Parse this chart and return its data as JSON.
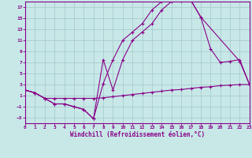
{
  "xlabel": "Windchill (Refroidissement éolien,°C)",
  "bg_color": "#c8e8e8",
  "line_color": "#880088",
  "grid_color": "#aacccc",
  "xlim": [
    0,
    23
  ],
  "ylim": [
    -4,
    18
  ],
  "xticks": [
    0,
    1,
    2,
    3,
    4,
    5,
    6,
    7,
    8,
    9,
    10,
    11,
    12,
    13,
    14,
    15,
    16,
    17,
    18,
    19,
    20,
    21,
    22,
    23
  ],
  "yticks": [
    -3,
    -1,
    1,
    3,
    5,
    7,
    9,
    11,
    13,
    15,
    17
  ],
  "line1_x": [
    0,
    1,
    2,
    3,
    4,
    5,
    6,
    7,
    8,
    9,
    10,
    11,
    12,
    13,
    14,
    15,
    16,
    17,
    18,
    19,
    20,
    21,
    22,
    23
  ],
  "line1_y": [
    2.0,
    1.5,
    0.5,
    0.5,
    0.5,
    0.5,
    0.5,
    0.5,
    0.6,
    0.8,
    1.0,
    1.2,
    1.4,
    1.6,
    1.8,
    2.0,
    2.1,
    2.3,
    2.5,
    2.6,
    2.8,
    2.9,
    3.0,
    3.0
  ],
  "line2_x": [
    0,
    1,
    2,
    3,
    4,
    5,
    6,
    7,
    8,
    9,
    10,
    11,
    12,
    13,
    14,
    15,
    16,
    17,
    18,
    22,
    23
  ],
  "line2_y": [
    2.0,
    1.5,
    0.5,
    -0.5,
    -0.5,
    -1.0,
    -1.5,
    -3.2,
    7.5,
    2.0,
    7.5,
    11.0,
    12.5,
    14.0,
    16.5,
    18.0,
    18.2,
    18.2,
    15.2,
    7.2,
    3.0
  ],
  "line3_x": [
    0,
    1,
    2,
    3,
    4,
    5,
    6,
    7,
    8,
    9,
    10,
    11,
    12,
    13,
    14,
    15,
    16,
    17,
    18,
    19,
    20,
    21,
    22,
    23
  ],
  "line3_y": [
    2.0,
    1.5,
    0.5,
    -0.5,
    -0.5,
    -1.0,
    -1.5,
    -3.2,
    3.2,
    7.5,
    11.0,
    12.5,
    14.0,
    16.5,
    18.0,
    18.2,
    18.2,
    18.2,
    15.2,
    9.5,
    7.0,
    7.2,
    7.5,
    3.0
  ]
}
